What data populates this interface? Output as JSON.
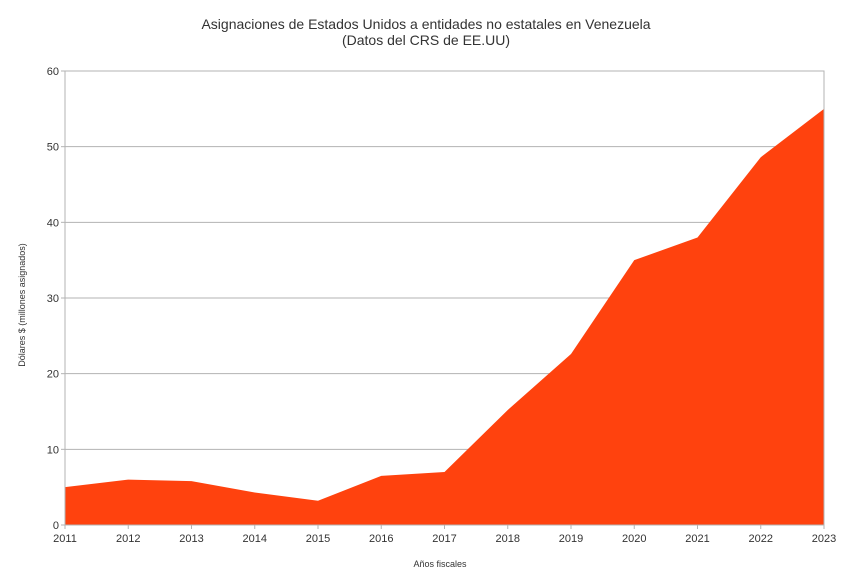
{
  "chart_data": {
    "type": "area",
    "title": "Asignaciones de Estados Unidos a entidades no estatales en Venezuela",
    "subtitle": "(Datos del CRS de EE.UU)",
    "xlabel": "Años fiscales",
    "ylabel": "Dólares $ (millones asignados)",
    "x": [
      "2011",
      "2012",
      "2013",
      "2014",
      "2015",
      "2016",
      "2017",
      "2018",
      "2019",
      "2020",
      "2021",
      "2022",
      "2023"
    ],
    "values": [
      5.0,
      6.0,
      5.8,
      4.3,
      3.2,
      6.5,
      7.0,
      15.2,
      22.6,
      35.0,
      38.0,
      48.6,
      55.0
    ],
    "ylim": [
      0,
      60
    ],
    "yticks": [
      "0",
      "10",
      "20",
      "30",
      "40",
      "50",
      "60"
    ],
    "grid": true,
    "legend": "none",
    "colors": {
      "fill": "#ff420e",
      "grid": "#b3b3b3",
      "frame": "#b3b3b3"
    }
  }
}
